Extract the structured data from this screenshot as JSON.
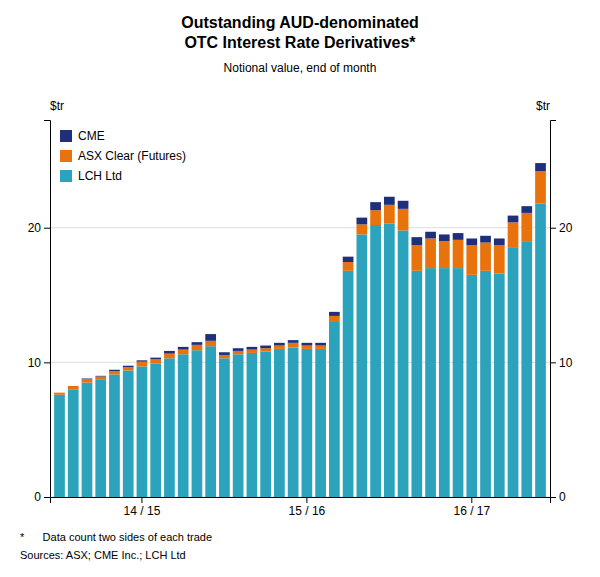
{
  "chart_data": {
    "type": "bar",
    "stacked": true,
    "title": "Outstanding AUD-denominated\nOTC Interest Rate Derivatives*",
    "subtitle": "Notional value, end of month",
    "ylabel": "$tr",
    "y2label": "$tr",
    "annotations": [
      "*      Data count two sides of each trade",
      "Sources: ASX; CME Inc.; LCH Ltd"
    ],
    "categories": [
      null,
      null,
      null,
      null,
      null,
      null,
      "14 / 15",
      null,
      null,
      null,
      null,
      null,
      null,
      null,
      null,
      null,
      null,
      null,
      "15 / 16",
      null,
      null,
      null,
      null,
      null,
      null,
      null,
      null,
      null,
      null,
      null,
      "16 / 17",
      null,
      null,
      null,
      null,
      null
    ],
    "series": [
      {
        "name": "LCH Ltd",
        "color": "#2BA3BC",
        "values": [
          7.6,
          8.0,
          8.5,
          8.7,
          9.1,
          9.4,
          9.7,
          9.9,
          10.3,
          10.6,
          10.9,
          11.2,
          10.3,
          10.6,
          10.7,
          10.8,
          11.0,
          11.1,
          11.0,
          11.0,
          13.0,
          16.8,
          19.5,
          20.2,
          20.3,
          19.8,
          16.8,
          17.0,
          17.0,
          17.0,
          16.5,
          16.8,
          16.6,
          18.5,
          19.0,
          21.8
        ]
      },
      {
        "name": "ASX Clear (Futures)",
        "color": "#E8720C",
        "values": [
          0.15,
          0.25,
          0.25,
          0.25,
          0.25,
          0.25,
          0.35,
          0.35,
          0.35,
          0.35,
          0.4,
          0.4,
          0.25,
          0.25,
          0.25,
          0.25,
          0.25,
          0.35,
          0.25,
          0.25,
          0.45,
          0.65,
          0.75,
          1.1,
          1.4,
          1.6,
          1.9,
          2.2,
          2.0,
          2.1,
          2.2,
          2.1,
          2.1,
          1.9,
          2.1,
          2.4
        ]
      },
      {
        "name": "CME",
        "color": "#1F2F7A",
        "values": [
          0.0,
          0.0,
          0.05,
          0.05,
          0.1,
          0.1,
          0.1,
          0.1,
          0.2,
          0.2,
          0.2,
          0.5,
          0.2,
          0.2,
          0.2,
          0.2,
          0.2,
          0.2,
          0.2,
          0.2,
          0.3,
          0.4,
          0.5,
          0.6,
          0.6,
          0.6,
          0.6,
          0.5,
          0.5,
          0.5,
          0.5,
          0.5,
          0.5,
          0.5,
          0.5,
          0.6
        ]
      }
    ],
    "ylim": [
      0,
      28
    ],
    "yticks": [
      0,
      10,
      20
    ],
    "y2lim": [
      0,
      28
    ],
    "y2ticks": [
      0,
      10,
      20
    ],
    "grid": true,
    "legend": "upper left"
  }
}
